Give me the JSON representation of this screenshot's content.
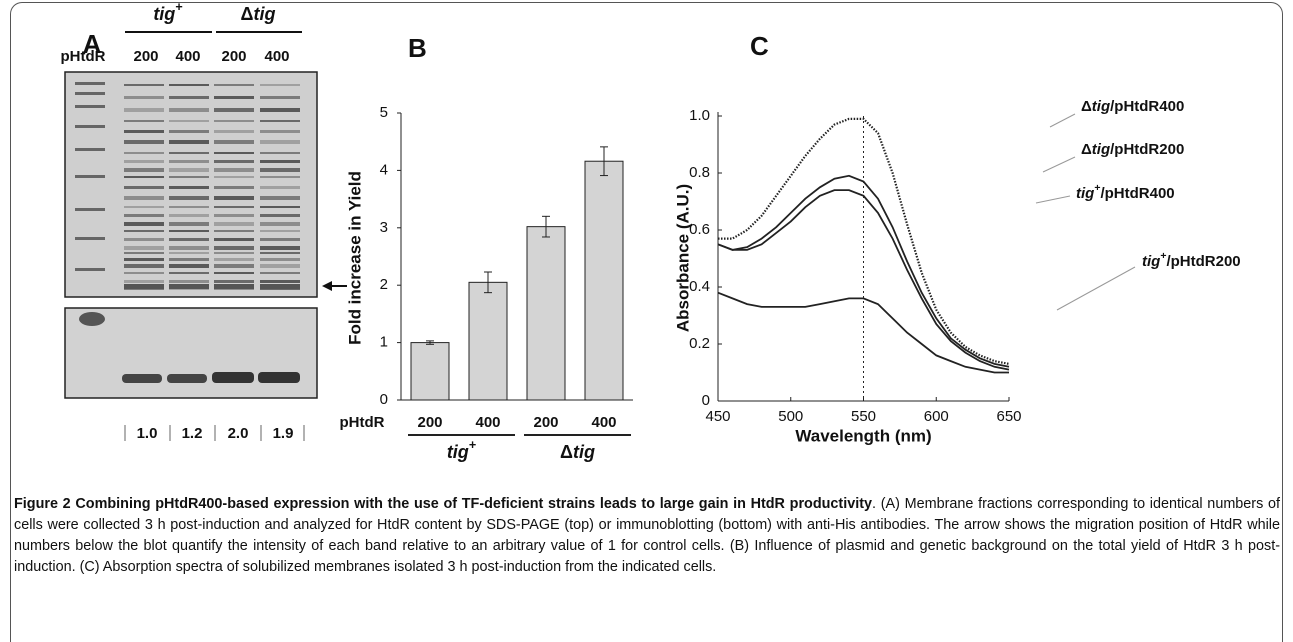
{
  "panel_a": {
    "label": "A",
    "header": "pHtdR",
    "groups": [
      {
        "label": [
          {
            "text": "tig",
            "italic": true
          },
          {
            "text": "+",
            "sup": true
          }
        ]
      },
      {
        "label": [
          {
            "text": "Δ"
          },
          {
            "text": "tig",
            "italic": true
          }
        ]
      }
    ],
    "lanes": [
      "200",
      "400",
      "200",
      "400"
    ],
    "quantification": [
      "1.0",
      "1.2",
      "2.0",
      "1.9"
    ]
  },
  "chart_data": [
    {
      "type": "bar",
      "panel_label": "B",
      "ylabel": "Fold increase in Yield",
      "xlabel": "pHtdR",
      "categories": [
        "200",
        "400",
        "200",
        "400"
      ],
      "groups": [
        {
          "label": [
            {
              "text": "tig",
              "italic": true
            },
            {
              "text": "+",
              "sup": true
            }
          ]
        },
        {
          "label": [
            {
              "text": "Δ"
            },
            {
              "text": "tig",
              "italic": true
            }
          ]
        }
      ],
      "values": [
        1.0,
        2.05,
        3.02,
        4.16
      ],
      "errors": [
        0.03,
        0.18,
        0.18,
        0.25
      ],
      "color": "#d4d4d4",
      "ylim": [
        0,
        5
      ],
      "yticks": [
        0,
        1,
        2,
        3,
        4,
        5
      ]
    },
    {
      "type": "line",
      "panel_label": "C",
      "xlabel": "Wavelength (nm)",
      "ylabel": "Absorbance (A.U.)",
      "x": [
        450,
        460,
        470,
        480,
        490,
        500,
        510,
        520,
        530,
        540,
        550,
        560,
        570,
        580,
        590,
        600,
        610,
        620,
        630,
        640,
        650
      ],
      "xlim": [
        450,
        650
      ],
      "xticks": [
        450,
        500,
        550,
        600,
        650
      ],
      "ylim": [
        0,
        1
      ],
      "yticks": [
        0,
        0.2,
        0.4,
        0.6,
        0.8,
        {
          "value": 1,
          "label": "1.0"
        }
      ],
      "vline": 550,
      "series": [
        {
          "name": [
            {
              "text": "Δ"
            },
            {
              "text": "tig",
              "italic": true
            },
            {
              "text": "/pHtdR400"
            }
          ],
          "color": "#222",
          "dotted": true,
          "values": [
            0.57,
            0.57,
            0.6,
            0.65,
            0.72,
            0.79,
            0.86,
            0.92,
            0.97,
            0.99,
            0.99,
            0.94,
            0.8,
            0.62,
            0.45,
            0.32,
            0.24,
            0.19,
            0.16,
            0.14,
            0.13
          ]
        },
        {
          "name": [
            {
              "text": "Δ"
            },
            {
              "text": "tig",
              "italic": true
            },
            {
              "text": "/pHtdR200"
            }
          ],
          "color": "#222",
          "dotted": false,
          "values": [
            0.55,
            0.53,
            0.54,
            0.57,
            0.61,
            0.66,
            0.71,
            0.75,
            0.78,
            0.79,
            0.77,
            0.71,
            0.61,
            0.49,
            0.38,
            0.29,
            0.22,
            0.18,
            0.15,
            0.13,
            0.12
          ]
        },
        {
          "name": [
            {
              "text": "tig",
              "italic": true
            },
            {
              "text": "+",
              "sup": true
            },
            {
              "text": "/pHtdR400"
            }
          ],
          "color": "#222",
          "dotted": false,
          "values": [
            0.55,
            0.53,
            0.53,
            0.55,
            0.59,
            0.63,
            0.68,
            0.72,
            0.74,
            0.74,
            0.72,
            0.66,
            0.57,
            0.46,
            0.36,
            0.27,
            0.21,
            0.17,
            0.14,
            0.12,
            0.11
          ]
        },
        {
          "name": [
            {
              "text": "tig",
              "italic": true
            },
            {
              "text": "+",
              "sup": true
            },
            {
              "text": "/pHtdR200"
            }
          ],
          "color": "#222",
          "dotted": false,
          "values": [
            0.38,
            0.36,
            0.34,
            0.33,
            0.33,
            0.33,
            0.33,
            0.34,
            0.35,
            0.36,
            0.36,
            0.34,
            0.29,
            0.24,
            0.2,
            0.16,
            0.14,
            0.12,
            0.11,
            0.1,
            0.1
          ]
        }
      ]
    }
  ],
  "caption": {
    "title": "Figure 2 Combining pHtdR400-based expression with the use of TF-deficient strains leads to large gain in HtdR productivity",
    "text": ". (A) Membrane fractions corresponding to identical numbers of cells were collected 3 h post-induction and analyzed for HtdR content by SDS-PAGE (top) or immunoblotting (bottom) with anti-His antibodies. The arrow shows the migration position of HtdR while numbers below the blot quantify the intensity of each band relative to an arbitrary value of 1 for control cells. (B) Influence of plasmid and genetic background on the total yield of HtdR 3 h post-induction. (C) Absorption spectra of solubilized membranes isolated 3 h post-induction from the indicated cells."
  }
}
